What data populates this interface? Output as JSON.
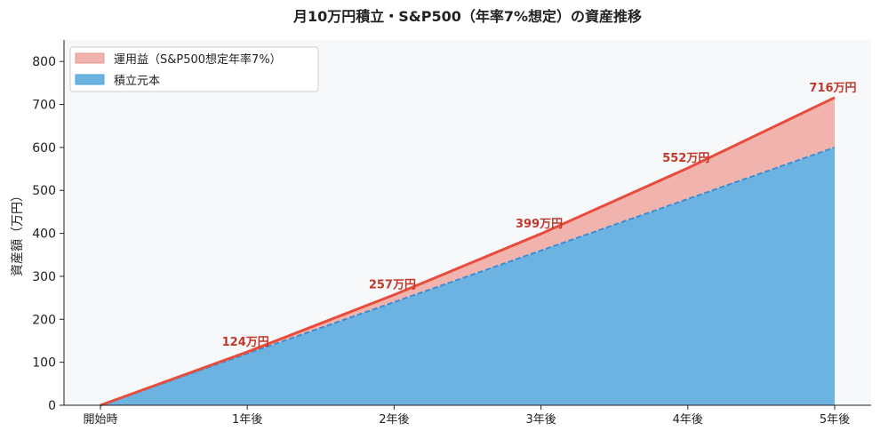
{
  "chart_data": {
    "type": "area",
    "stacked": true,
    "title": "月10万円積立・S&P500（年率7%想定）の資産推移",
    "xlabel": "",
    "ylabel": "資産額（万円）",
    "categories": [
      "開始時",
      "1年後",
      "2年後",
      "3年後",
      "4年後",
      "5年後"
    ],
    "ylim": [
      0,
      850
    ],
    "yticks": [
      0,
      100,
      200,
      300,
      400,
      500,
      600,
      700,
      800
    ],
    "grid": false,
    "legend_position": "top-left",
    "series": [
      {
        "name": "積立元本",
        "values": [
          0,
          120,
          240,
          360,
          480,
          600
        ],
        "color": "#6db3e2",
        "line_color": "#3a8fd6"
      },
      {
        "name": "運用益（S&P500想定年率7%）",
        "values": [
          0,
          4,
          17,
          39,
          72,
          116
        ],
        "color": "#f1b3ad",
        "line_color": "#e74c3c"
      }
    ],
    "totals": [
      0,
      124,
      257,
      399,
      552,
      716
    ],
    "data_labels": [
      "124万円",
      "257万円",
      "399万円",
      "552万円",
      "716万円"
    ],
    "plot_background": "#f7f8fa"
  }
}
